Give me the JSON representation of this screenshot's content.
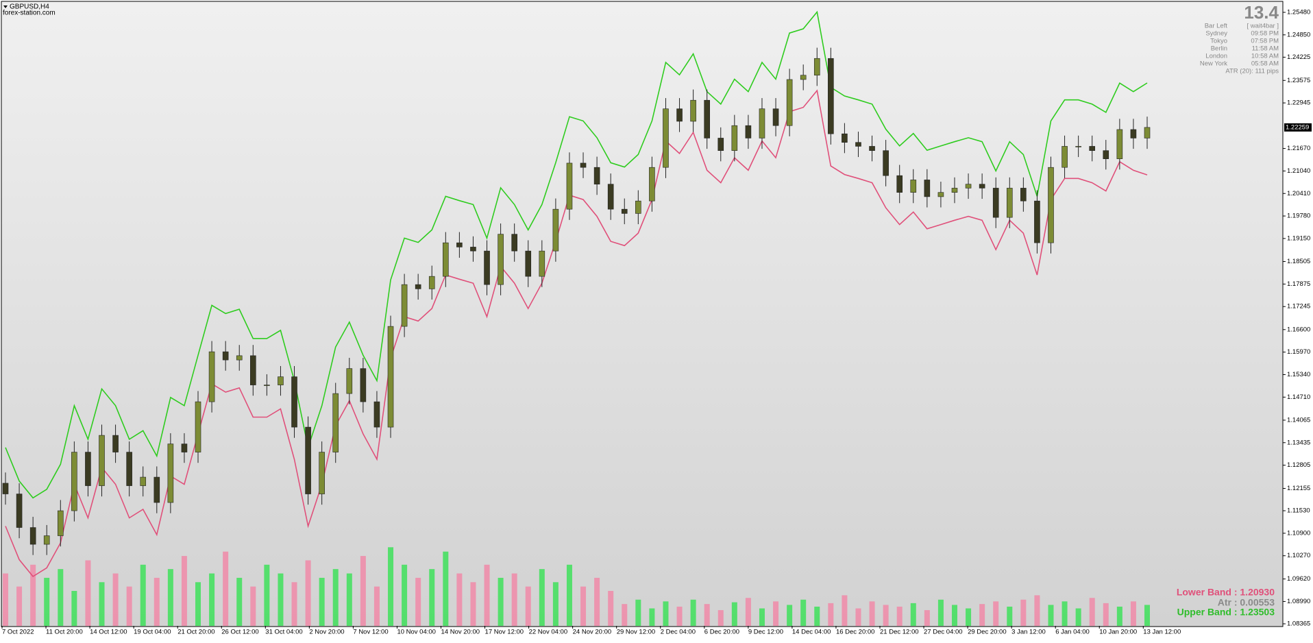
{
  "header": {
    "symbol": "GBPUSD,H4",
    "site": "forex-station.com"
  },
  "info": {
    "big": "13.4",
    "rows": [
      [
        "Bar Left",
        "[ wait4bar ]"
      ],
      [
        "Sydney",
        "09:58 PM"
      ],
      [
        "Tokyo",
        "07:58 PM"
      ],
      [
        "Berlin",
        "11:58 AM"
      ],
      [
        "London",
        "10:58 AM"
      ],
      [
        "New York",
        "05:58 AM"
      ]
    ],
    "atr": "ATR (20): 111 pips"
  },
  "legend": {
    "lower": "Lower Band : 1.20930",
    "atr": "Atr : 0.00553",
    "upper": "Upper Band : 1.23503"
  },
  "chart_data": {
    "type": "candlestick",
    "ylim": [
      1.08365,
      1.2548
    ],
    "yticks": [
      {
        "value": 1.2548,
        "label": "1.25480"
      },
      {
        "value": 1.2485,
        "label": "1.24850"
      },
      {
        "value": 1.24225,
        "label": "1.24225"
      },
      {
        "value": 1.23575,
        "label": "1.23575"
      },
      {
        "value": 1.22945,
        "label": "1.22945"
      },
      {
        "value": 1.2167,
        "label": "1.21670"
      },
      {
        "value": 1.2104,
        "label": "1.21040"
      },
      {
        "value": 1.2041,
        "label": "1.20410"
      },
      {
        "value": 1.1978,
        "label": "1.19780"
      },
      {
        "value": 1.1915,
        "label": "1.19150"
      },
      {
        "value": 1.18505,
        "label": "1.18505"
      },
      {
        "value": 1.17875,
        "label": "1.17875"
      },
      {
        "value": 1.17245,
        "label": "1.17245"
      },
      {
        "value": 1.166,
        "label": "1.16600"
      },
      {
        "value": 1.1597,
        "label": "1.15970"
      },
      {
        "value": 1.1534,
        "label": "1.15340"
      },
      {
        "value": 1.1471,
        "label": "1.14710"
      },
      {
        "value": 1.14065,
        "label": "1.14065"
      },
      {
        "value": 1.13435,
        "label": "1.13435"
      },
      {
        "value": 1.12805,
        "label": "1.12805"
      },
      {
        "value": 1.12155,
        "label": "1.12155"
      },
      {
        "value": 1.1153,
        "label": "1.11530"
      },
      {
        "value": 1.109,
        "label": "1.10900"
      },
      {
        "value": 1.1027,
        "label": "1.10270"
      },
      {
        "value": 1.0962,
        "label": "1.09620"
      },
      {
        "value": 1.0899,
        "label": "1.08990"
      },
      {
        "value": 1.08365,
        "label": "1.08365"
      }
    ],
    "current_price": 1.22259,
    "x_labels": [
      "7 Oct 2022",
      "11 Oct 20:00",
      "14 Oct 12:00",
      "19 Oct 04:00",
      "21 Oct 20:00",
      "26 Oct 12:00",
      "31 Oct 04:00",
      "2 Nov 20:00",
      "7 Nov 12:00",
      "10 Nov 04:00",
      "14 Nov 20:00",
      "17 Nov 12:00",
      "22 Nov 04:00",
      "24 Nov 20:00",
      "29 Nov 12:00",
      "2 Dec 04:00",
      "6 Dec 20:00",
      "9 Dec 12:00",
      "14 Dec 04:00",
      "16 Dec 20:00",
      "21 Dec 12:00",
      "27 Dec 04:00",
      "29 Dec 20:00",
      "3 Jan 12:00",
      "6 Jan 04:00",
      "10 Jan 20:00",
      "13 Jan 12:00"
    ],
    "ohlc": [
      [
        1.123,
        1.126,
        1.117,
        1.12
      ],
      [
        1.12,
        1.123,
        1.1076,
        1.1106
      ],
      [
        1.1106,
        1.1136,
        1.1029,
        1.1059
      ],
      [
        1.1059,
        1.1113,
        1.1029,
        1.1083
      ],
      [
        1.1083,
        1.1183,
        1.1053,
        1.1153
      ],
      [
        1.1153,
        1.1347,
        1.1123,
        1.1317
      ],
      [
        1.1317,
        1.1347,
        1.1193,
        1.1223
      ],
      [
        1.1223,
        1.1394,
        1.1193,
        1.1364
      ],
      [
        1.1364,
        1.1394,
        1.1287,
        1.1317
      ],
      [
        1.1317,
        1.1347,
        1.1193,
        1.1223
      ],
      [
        1.1223,
        1.1277,
        1.1193,
        1.1247
      ],
      [
        1.1247,
        1.1277,
        1.1146,
        1.1176
      ],
      [
        1.1176,
        1.137,
        1.1146,
        1.134
      ],
      [
        1.134,
        1.137,
        1.1287,
        1.1317
      ],
      [
        1.1317,
        1.1488,
        1.1287,
        1.1458
      ],
      [
        1.1458,
        1.1628,
        1.1428,
        1.1598
      ],
      [
        1.1598,
        1.1628,
        1.1545,
        1.1575
      ],
      [
        1.1575,
        1.1617,
        1.1545,
        1.1587
      ],
      [
        1.1587,
        1.1617,
        1.1475,
        1.1505
      ],
      [
        1.1505,
        1.1535,
        1.1475,
        1.1505
      ],
      [
        1.1505,
        1.1558,
        1.1475,
        1.1528
      ],
      [
        1.1528,
        1.1558,
        1.1357,
        1.1387
      ],
      [
        1.1387,
        1.1417,
        1.117,
        1.12
      ],
      [
        1.12,
        1.1347,
        1.117,
        1.1317
      ],
      [
        1.1317,
        1.1511,
        1.1287,
        1.1481
      ],
      [
        1.1481,
        1.1581,
        1.1451,
        1.1551
      ],
      [
        1.1551,
        1.1581,
        1.1428,
        1.1458
      ],
      [
        1.1458,
        1.1488,
        1.1357,
        1.1387
      ],
      [
        1.1387,
        1.1699,
        1.1357,
        1.1669
      ],
      [
        1.1669,
        1.1816,
        1.1639,
        1.1786
      ],
      [
        1.1786,
        1.1816,
        1.1744,
        1.1774
      ],
      [
        1.1774,
        1.1839,
        1.1744,
        1.1809
      ],
      [
        1.1809,
        1.1933,
        1.1779,
        1.1903
      ],
      [
        1.1903,
        1.1933,
        1.1861,
        1.1891
      ],
      [
        1.1891,
        1.1921,
        1.185,
        1.188
      ],
      [
        1.188,
        1.191,
        1.1756,
        1.1786
      ],
      [
        1.1786,
        1.1957,
        1.1756,
        1.1927
      ],
      [
        1.1927,
        1.1957,
        1.185,
        1.188
      ],
      [
        1.188,
        1.191,
        1.1779,
        1.1809
      ],
      [
        1.1809,
        1.191,
        1.1779,
        1.188
      ],
      [
        1.188,
        1.2027,
        1.185,
        1.1997
      ],
      [
        1.1997,
        1.2156,
        1.1967,
        1.2126
      ],
      [
        1.2126,
        1.2156,
        1.2084,
        1.2114
      ],
      [
        1.2114,
        1.2144,
        1.2037,
        1.2067
      ],
      [
        1.2067,
        1.2097,
        1.1967,
        1.1997
      ],
      [
        1.1997,
        1.2027,
        1.1955,
        1.1985
      ],
      [
        1.1985,
        1.205,
        1.1955,
        1.202
      ],
      [
        1.202,
        1.2144,
        1.199,
        1.2114
      ],
      [
        1.2114,
        1.2308,
        1.2084,
        1.2278
      ],
      [
        1.2278,
        1.2308,
        1.2213,
        1.2243
      ],
      [
        1.2243,
        1.2332,
        1.2213,
        1.2302
      ],
      [
        1.2302,
        1.2332,
        1.2166,
        1.2196
      ],
      [
        1.2196,
        1.2226,
        1.2131,
        1.2161
      ],
      [
        1.2161,
        1.2261,
        1.2131,
        1.2231
      ],
      [
        1.2231,
        1.2261,
        1.2166,
        1.2196
      ],
      [
        1.2196,
        1.2308,
        1.2166,
        1.2278
      ],
      [
        1.2278,
        1.2308,
        1.2201,
        1.2231
      ],
      [
        1.2231,
        1.239,
        1.2201,
        1.236
      ],
      [
        1.236,
        1.2402,
        1.233,
        1.2372
      ],
      [
        1.2372,
        1.2449,
        1.2342,
        1.2419
      ],
      [
        1.2419,
        1.2449,
        1.2178,
        1.2208
      ],
      [
        1.2208,
        1.2238,
        1.2154,
        1.2184
      ],
      [
        1.2184,
        1.2214,
        1.2143,
        1.2173
      ],
      [
        1.2173,
        1.2203,
        1.2131,
        1.2161
      ],
      [
        1.2161,
        1.2191,
        1.2061,
        1.2091
      ],
      [
        1.2091,
        1.2121,
        1.2014,
        1.2044
      ],
      [
        1.2044,
        1.2109,
        1.2014,
        1.2079
      ],
      [
        1.2079,
        1.2109,
        1.2002,
        1.2032
      ],
      [
        1.2032,
        1.2074,
        1.2002,
        1.2044
      ],
      [
        1.2044,
        1.2086,
        1.2014,
        1.2056
      ],
      [
        1.2056,
        1.2097,
        1.2026,
        1.2067
      ],
      [
        1.2067,
        1.2097,
        1.2026,
        1.2056
      ],
      [
        1.2056,
        1.2086,
        1.1944,
        1.1974
      ],
      [
        1.1974,
        1.2086,
        1.1944,
        1.2056
      ],
      [
        1.2056,
        1.2086,
        1.199,
        1.202
      ],
      [
        1.202,
        1.205,
        1.1873,
        1.1903
      ],
      [
        1.1903,
        1.2144,
        1.1873,
        1.2114
      ],
      [
        1.2114,
        1.2203,
        1.2084,
        1.2173
      ],
      [
        1.2173,
        1.2203,
        1.2143,
        1.2173
      ],
      [
        1.2173,
        1.2203,
        1.2131,
        1.2161
      ],
      [
        1.2161,
        1.2191,
        1.2108,
        1.2138
      ],
      [
        1.2138,
        1.225,
        1.2108,
        1.222
      ],
      [
        1.222,
        1.225,
        1.2166,
        1.2196
      ],
      [
        1.2196,
        1.2256,
        1.2166,
        1.22259
      ]
    ],
    "series": [
      {
        "name": "Upper Band",
        "color": "#2ecc1e",
        "values": [
          1.133,
          1.1236,
          1.1189,
          1.1213,
          1.1283,
          1.1447,
          1.1353,
          1.1494,
          1.1447,
          1.1353,
          1.1377,
          1.1306,
          1.147,
          1.1447,
          1.1588,
          1.1728,
          1.1705,
          1.1717,
          1.1635,
          1.1635,
          1.1658,
          1.1517,
          1.133,
          1.1447,
          1.1611,
          1.1681,
          1.1588,
          1.1517,
          1.1799,
          1.1916,
          1.1904,
          1.1939,
          1.2033,
          1.2021,
          1.201,
          1.1916,
          1.2057,
          1.201,
          1.1939,
          1.201,
          1.2127,
          1.2256,
          1.2244,
          1.2197,
          1.2127,
          1.2115,
          1.215,
          1.2244,
          1.2408,
          1.2373,
          1.2432,
          1.2326,
          1.2291,
          1.2361,
          1.2326,
          1.2408,
          1.2361,
          1.249,
          1.2502,
          1.2549,
          1.2338,
          1.2314,
          1.2303,
          1.2291,
          1.2221,
          1.2174,
          1.2209,
          1.2162,
          1.2174,
          1.2186,
          1.2197,
          1.2186,
          1.2104,
          1.2186,
          1.215,
          1.2033,
          1.2244,
          1.2303,
          1.2303,
          1.2291,
          1.2268,
          1.235,
          1.2326,
          1.23503
        ]
      },
      {
        "name": "Lower Band",
        "color": "#e0507a",
        "values": [
          1.111,
          1.1016,
          1.0969,
          1.0993,
          1.1063,
          1.1227,
          1.1133,
          1.1274,
          1.1227,
          1.1133,
          1.1157,
          1.1086,
          1.125,
          1.1227,
          1.1368,
          1.1508,
          1.1485,
          1.1497,
          1.1415,
          1.1415,
          1.1438,
          1.1297,
          1.111,
          1.1227,
          1.1391,
          1.1461,
          1.1368,
          1.1297,
          1.1579,
          1.1696,
          1.1684,
          1.1719,
          1.1813,
          1.1801,
          1.179,
          1.1696,
          1.1837,
          1.179,
          1.1719,
          1.179,
          1.1907,
          1.2036,
          1.2024,
          1.1977,
          1.1907,
          1.1895,
          1.193,
          1.2024,
          1.2188,
          1.2153,
          1.2212,
          1.2106,
          1.2071,
          1.2141,
          1.2106,
          1.2188,
          1.2141,
          1.227,
          1.2282,
          1.2329,
          1.2118,
          1.2094,
          1.2083,
          1.2071,
          1.2001,
          1.1954,
          1.1989,
          1.1942,
          1.1954,
          1.1966,
          1.1977,
          1.1966,
          1.1884,
          1.1966,
          1.193,
          1.1813,
          1.2024,
          1.2083,
          1.2083,
          1.2071,
          1.2048,
          1.213,
          1.2106,
          1.2093
        ]
      }
    ],
    "volume": [
      60,
      45,
      70,
      55,
      65,
      40,
      75,
      50,
      60,
      45,
      70,
      55,
      65,
      80,
      50,
      60,
      85,
      55,
      45,
      70,
      60,
      50,
      75,
      55,
      65,
      60,
      80,
      45,
      90,
      70,
      55,
      65,
      85,
      60,
      50,
      70,
      55,
      60,
      45,
      65,
      50,
      70,
      45,
      55,
      40,
      25,
      30,
      20,
      28,
      22,
      30,
      25,
      18,
      27,
      32,
      20,
      28,
      24,
      30,
      22,
      26,
      35,
      20,
      28,
      24,
      22,
      26,
      18,
      30,
      24,
      20,
      25,
      28,
      22,
      30,
      35,
      24,
      28,
      20,
      32,
      26,
      22,
      28,
      24
    ],
    "volume_ylim": [
      0,
      700
    ],
    "up_color": "#7d8c35",
    "down_color": "#3b3b22",
    "volume_up_color": "#3ee05a",
    "volume_down_color": "#f08aa8"
  }
}
